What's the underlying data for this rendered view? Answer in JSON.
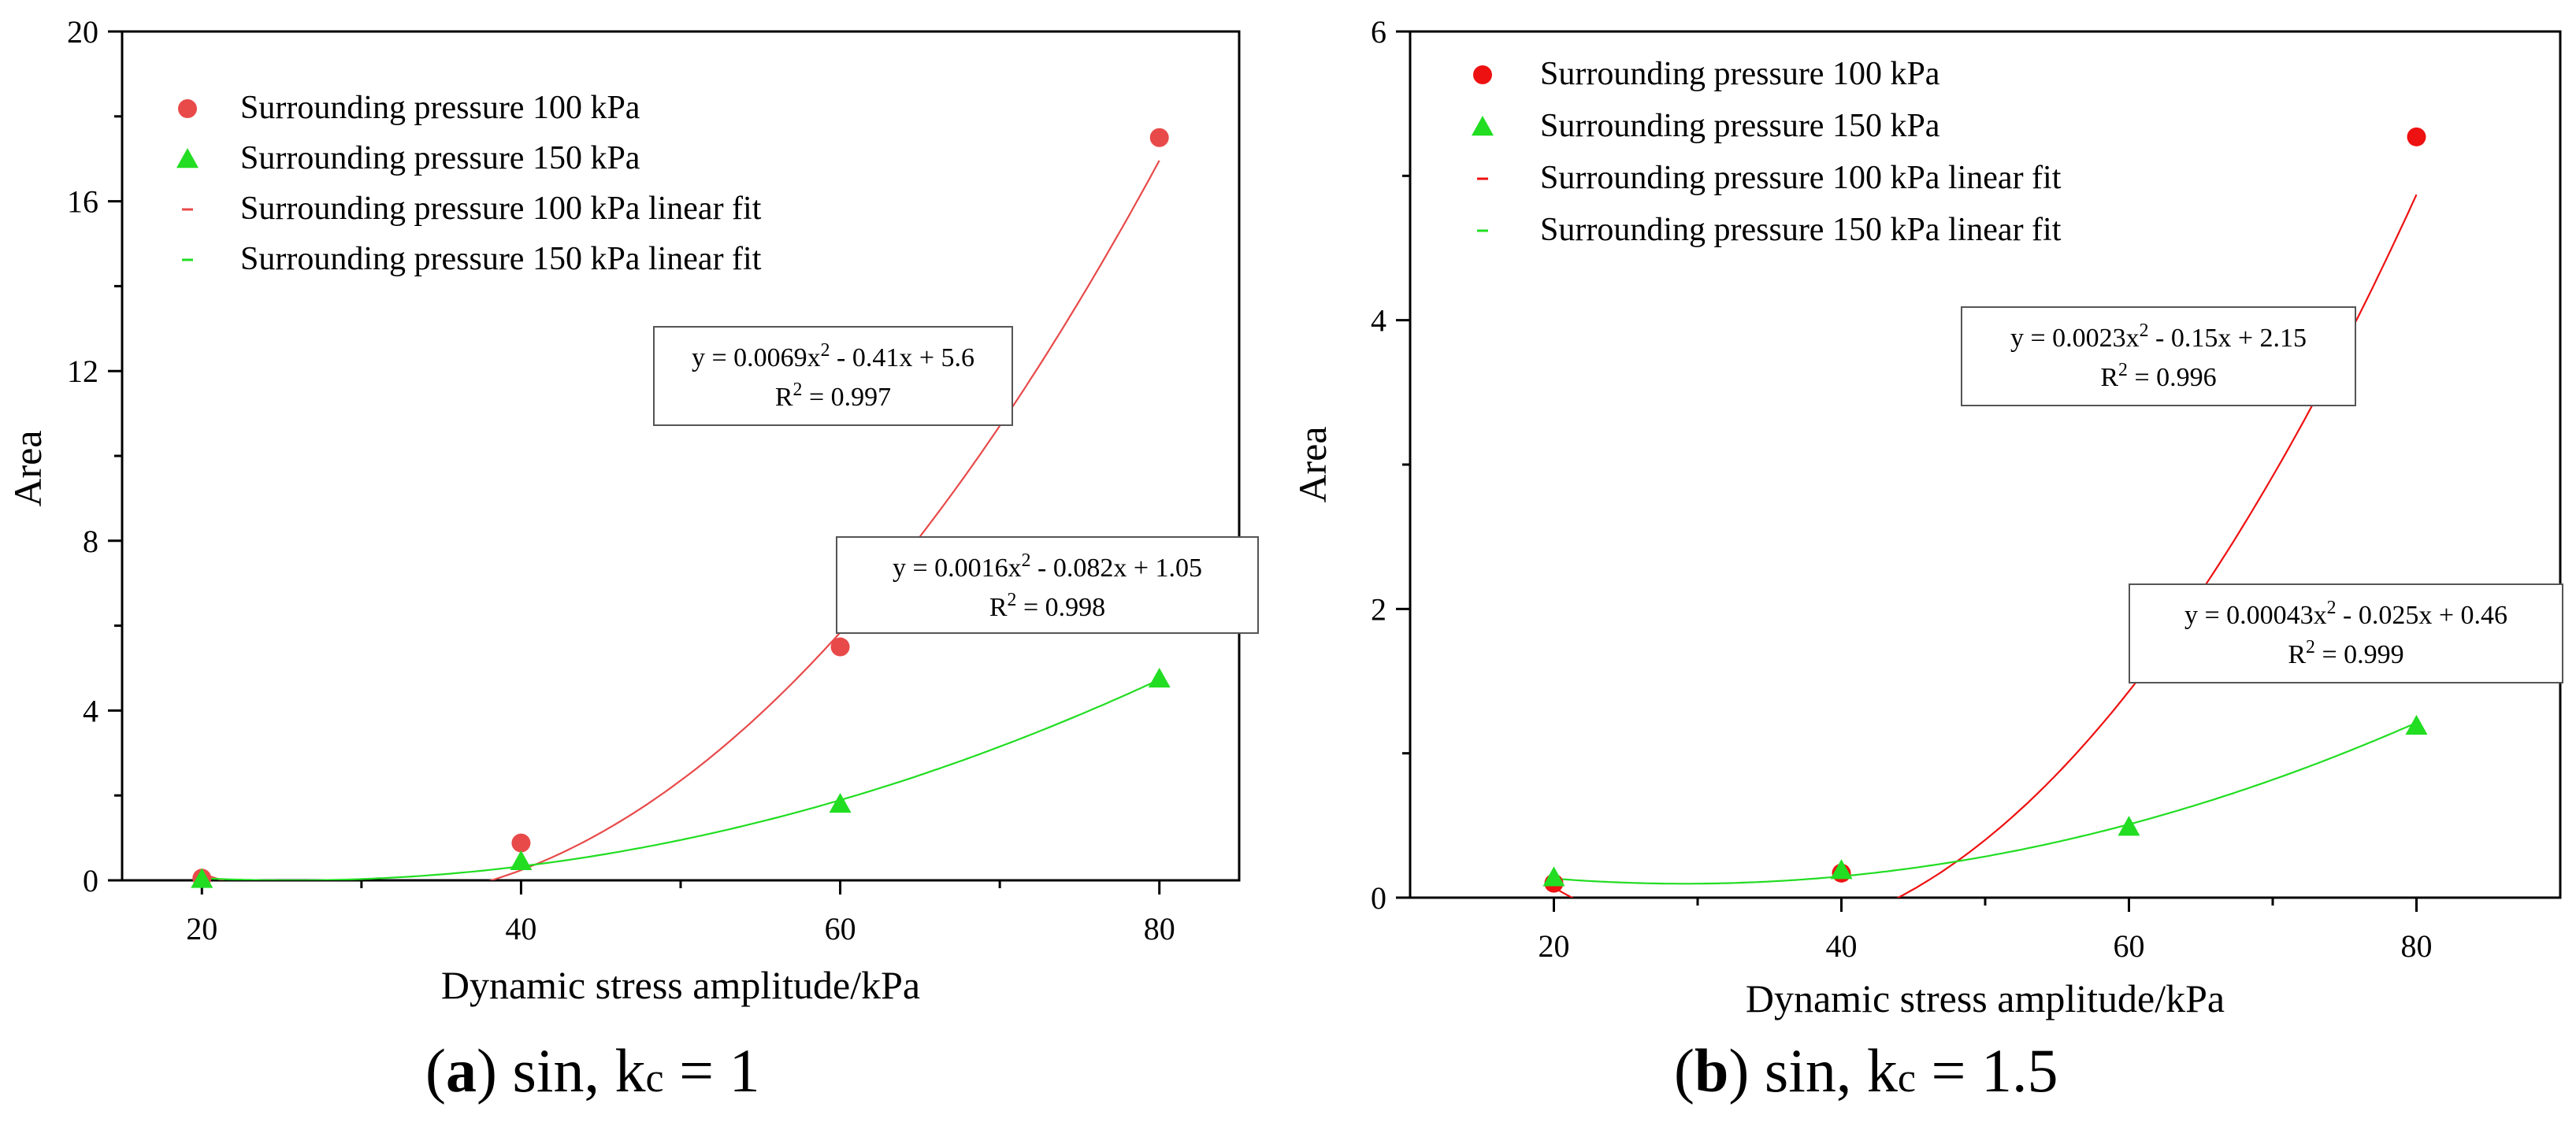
{
  "chart_data": [
    {
      "type": "scatter",
      "panel": "a",
      "caption": {
        "letter": "a",
        "trig": "sin,",
        "k": "k",
        "k_sub": "c",
        "value": "= 1"
      },
      "xlabel": "Dynamic stress amplitude/kPa",
      "ylabel": "Area",
      "xlim": [
        15,
        85
      ],
      "ylim": [
        0,
        20
      ],
      "xticks": [
        20,
        40,
        60,
        80
      ],
      "yticks": [
        0,
        4,
        8,
        12,
        16,
        20
      ],
      "grid": false,
      "legend_position": "top-left",
      "series": [
        {
          "name": "Surrounding pressure 100 kPa",
          "marker": "circle",
          "color": "#e84a4a",
          "x": [
            20,
            40,
            60,
            80
          ],
          "y": [
            0.05,
            0.88,
            5.5,
            17.5
          ]
        },
        {
          "name": "Surrounding pressure 150 kPa",
          "marker": "triangle",
          "color": "#22dd22",
          "x": [
            20,
            40,
            60,
            80
          ],
          "y": [
            0.03,
            0.45,
            1.8,
            4.75
          ]
        }
      ],
      "fits": [
        {
          "name": "Surrounding pressure 100 kPa linear fit",
          "color": "#e84a4a",
          "a": 0.0069,
          "b": -0.41,
          "c": 5.6,
          "x_start": 20,
          "x_end": 80,
          "equation": {
            "pre": "y = 0.0069x",
            "post": " - 0.41x + 5.6",
            "r2_label": "R",
            "r2_value": " = 0.997"
          }
        },
        {
          "name": "Surrounding pressure 150 kPa linear fit",
          "color": "#22dd22",
          "a": 0.0016,
          "b": -0.082,
          "c": 1.05,
          "x_start": 20,
          "x_end": 80,
          "equation": {
            "pre": "y = 0.0016x",
            "post": " - 0.082x + 1.05",
            "r2_label": "R",
            "r2_value": " = 0.998"
          }
        }
      ]
    },
    {
      "type": "scatter",
      "panel": "b",
      "caption": {
        "letter": "b",
        "trig": "sin,",
        "k": "k",
        "k_sub": "c",
        "value": "= 1.5"
      },
      "xlabel": "Dynamic stress amplitude/kPa",
      "ylabel": "Area",
      "xlim": [
        10,
        90
      ],
      "ylim": [
        0,
        6
      ],
      "xticks": [
        20,
        40,
        60,
        80
      ],
      "yticks": [
        0,
        2,
        4,
        6
      ],
      "grid": false,
      "legend_position": "top-left",
      "series": [
        {
          "name": "Surrounding pressure 100 kPa",
          "marker": "circle",
          "color": "#ee1111",
          "x": [
            20,
            40,
            80
          ],
          "y": [
            0.1,
            0.17,
            5.27
          ]
        },
        {
          "name": "Surrounding pressure 150 kPa",
          "marker": "triangle",
          "color": "#22dd22",
          "x": [
            20,
            40,
            60,
            80
          ],
          "y": [
            0.14,
            0.19,
            0.49,
            1.19
          ]
        }
      ],
      "fits": [
        {
          "name": "Surrounding pressure 100 kPa linear fit",
          "color": "#ee1111",
          "a": 0.0023,
          "b": -0.15,
          "c": 2.15,
          "x_start": 20,
          "x_end": 80,
          "equation": {
            "pre": "y = 0.0023x",
            "post": " - 0.15x + 2.15",
            "r2_label": "R",
            "r2_value": " = 0.996"
          }
        },
        {
          "name": "Surrounding pressure 150 kPa linear fit",
          "color": "#22dd22",
          "a": 0.00043,
          "b": -0.025,
          "c": 0.46,
          "x_start": 20,
          "x_end": 80,
          "equation": {
            "pre": "y = 0.00043x",
            "post": " - 0.025x + 0.46",
            "r2_label": "R",
            "r2_value": " = 0.999"
          }
        }
      ]
    }
  ]
}
